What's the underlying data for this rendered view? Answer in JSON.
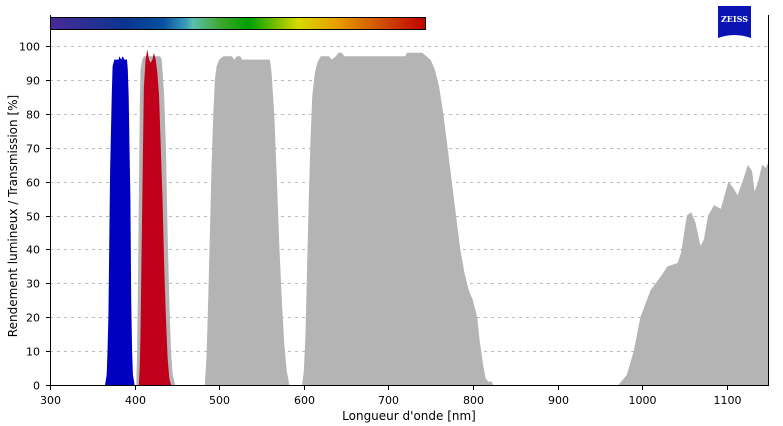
{
  "chart_data": {
    "type": "area",
    "xlabel": "Longueur d'onde [nm]",
    "ylabel": "Rendement lumineux / Transmission [%]",
    "xlim": [
      300,
      1150
    ],
    "ylim": [
      0,
      100
    ],
    "xticks": [
      "300",
      "400",
      "500",
      "600",
      "700",
      "800",
      "900",
      "1000",
      "1100"
    ],
    "yticks": [
      "0",
      "10",
      "20",
      "30",
      "40",
      "50",
      "60",
      "70",
      "80",
      "90",
      "100"
    ],
    "grid": "horizontal dashed",
    "logo": "ZEISS",
    "spectrum_bar": {
      "range_nm": [
        300,
        745
      ]
    },
    "series": [
      {
        "color": "#b4b4b4",
        "points": [
          [
            402,
            0
          ],
          [
            403,
            10
          ],
          [
            404,
            30
          ],
          [
            405,
            55
          ],
          [
            406,
            80
          ],
          [
            407,
            93
          ],
          [
            409,
            96
          ],
          [
            411,
            97
          ],
          [
            430,
            97
          ],
          [
            432,
            96
          ],
          [
            433,
            93
          ],
          [
            435,
            85
          ],
          [
            437,
            70
          ],
          [
            439,
            45
          ],
          [
            441,
            25
          ],
          [
            443,
            10
          ],
          [
            445,
            3
          ],
          [
            448,
            0
          ]
        ]
      },
      {
        "color": "#b4b4b4",
        "points": [
          [
            483,
            0
          ],
          [
            485,
            8
          ],
          [
            487,
            25
          ],
          [
            489,
            45
          ],
          [
            491,
            65
          ],
          [
            493,
            80
          ],
          [
            495,
            90
          ],
          [
            497,
            94
          ],
          [
            500,
            96
          ],
          [
            505,
            97
          ],
          [
            515,
            97
          ],
          [
            518,
            96
          ],
          [
            521,
            97
          ],
          [
            525,
            97
          ],
          [
            527,
            96
          ],
          [
            560,
            96
          ],
          [
            562,
            92
          ],
          [
            565,
            80
          ],
          [
            568,
            62
          ],
          [
            571,
            42
          ],
          [
            574,
            25
          ],
          [
            577,
            12
          ],
          [
            580,
            4
          ],
          [
            583,
            0
          ]
        ]
      },
      {
        "color": "#b4b4b4",
        "points": [
          [
            598,
            0
          ],
          [
            600,
            4
          ],
          [
            602,
            15
          ],
          [
            604,
            35
          ],
          [
            606,
            55
          ],
          [
            608,
            72
          ],
          [
            610,
            85
          ],
          [
            613,
            92
          ],
          [
            616,
            95
          ],
          [
            620,
            97
          ],
          [
            630,
            97
          ],
          [
            633,
            96
          ],
          [
            638,
            97
          ],
          [
            641,
            98
          ],
          [
            645,
            98
          ],
          [
            648,
            97
          ],
          [
            720,
            97
          ],
          [
            722,
            98
          ],
          [
            740,
            98
          ],
          [
            745,
            97
          ],
          [
            750,
            96
          ],
          [
            755,
            93
          ],
          [
            760,
            88
          ],
          [
            765,
            80
          ],
          [
            770,
            70
          ],
          [
            775,
            60
          ],
          [
            780,
            50
          ],
          [
            785,
            40
          ],
          [
            790,
            33
          ],
          [
            795,
            28
          ],
          [
            800,
            25
          ],
          [
            805,
            20
          ],
          [
            808,
            13
          ],
          [
            812,
            6
          ],
          [
            815,
            2
          ],
          [
            818,
            1
          ],
          [
            822,
            1
          ],
          [
            824,
            0
          ]
        ]
      },
      {
        "color": "#b4b4b4",
        "points": [
          [
            972,
            0
          ],
          [
            982,
            3
          ],
          [
            990,
            10
          ],
          [
            998,
            20
          ],
          [
            1010,
            28
          ],
          [
            1022,
            32
          ],
          [
            1030,
            35
          ],
          [
            1042,
            36
          ],
          [
            1046,
            39
          ],
          [
            1053,
            50
          ],
          [
            1058,
            51
          ],
          [
            1063,
            48
          ],
          [
            1069,
            41
          ],
          [
            1073,
            43
          ],
          [
            1078,
            50
          ],
          [
            1085,
            53
          ],
          [
            1093,
            52
          ],
          [
            1102,
            60
          ],
          [
            1108,
            58
          ],
          [
            1113,
            56
          ],
          [
            1120,
            61
          ],
          [
            1125,
            65
          ],
          [
            1130,
            63
          ],
          [
            1133,
            57
          ],
          [
            1137,
            60
          ],
          [
            1142,
            65
          ],
          [
            1146,
            64
          ],
          [
            1150,
            66
          ]
        ]
      },
      {
        "color": "#0000c0",
        "points": [
          [
            365,
            0
          ],
          [
            367,
            3
          ],
          [
            368,
            10
          ],
          [
            369,
            20
          ],
          [
            370,
            40
          ],
          [
            371,
            63
          ],
          [
            373,
            85
          ],
          [
            374,
            94
          ],
          [
            376,
            96
          ],
          [
            381,
            96
          ],
          [
            382,
            97
          ],
          [
            384,
            96
          ],
          [
            386,
            97
          ],
          [
            388,
            96
          ],
          [
            391,
            96
          ],
          [
            392,
            93
          ],
          [
            393,
            85
          ],
          [
            394,
            70
          ],
          [
            395,
            55
          ],
          [
            396,
            25
          ],
          [
            397,
            10
          ],
          [
            398,
            3
          ],
          [
            400,
            0
          ]
        ]
      },
      {
        "color": "#c0001a",
        "points": [
          [
            405,
            0
          ],
          [
            406,
            5
          ],
          [
            407,
            15
          ],
          [
            408,
            35
          ],
          [
            410,
            70
          ],
          [
            411,
            88
          ],
          [
            413,
            96
          ],
          [
            415,
            99
          ],
          [
            417,
            96
          ],
          [
            419,
            95
          ],
          [
            421,
            96
          ],
          [
            423,
            98
          ],
          [
            425,
            96
          ],
          [
            427,
            92
          ],
          [
            429,
            85
          ],
          [
            431,
            70
          ],
          [
            433,
            55
          ],
          [
            435,
            35
          ],
          [
            437,
            20
          ],
          [
            439,
            8
          ],
          [
            441,
            2
          ],
          [
            443,
            0
          ]
        ]
      }
    ]
  }
}
